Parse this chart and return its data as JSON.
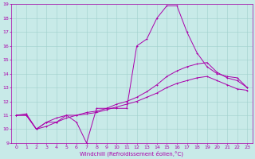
{
  "title": "",
  "xlabel": "Windchill (Refroidissement éolien,°C)",
  "xlim": [
    -0.5,
    23.5
  ],
  "ylim": [
    9,
    19
  ],
  "xticks": [
    0,
    1,
    2,
    3,
    4,
    5,
    6,
    7,
    8,
    9,
    10,
    11,
    12,
    13,
    14,
    15,
    16,
    17,
    18,
    19,
    20,
    21,
    22,
    23
  ],
  "yticks": [
    9,
    10,
    11,
    12,
    13,
    14,
    15,
    16,
    17,
    18,
    19
  ],
  "background_color": "#c8eae8",
  "line_color": "#aa00aa",
  "grid_color": "#a0d0cc",
  "line1_x": [
    0,
    1,
    2,
    3,
    4,
    5,
    6,
    7,
    8,
    9,
    10,
    11,
    12,
    13,
    14,
    15,
    16,
    17,
    18,
    19,
    20,
    21,
    22,
    23
  ],
  "line1_y": [
    11.0,
    11.1,
    10.0,
    10.5,
    10.5,
    11.0,
    10.5,
    9.0,
    11.5,
    11.5,
    11.5,
    11.5,
    16.0,
    16.5,
    18.0,
    18.9,
    18.9,
    17.0,
    15.5,
    14.5,
    14.0,
    13.8,
    13.7,
    13.0
  ],
  "line2_x": [
    0,
    1,
    2,
    3,
    4,
    5,
    6,
    7,
    8,
    9,
    10,
    11,
    12,
    13,
    14,
    15,
    16,
    17,
    18,
    19,
    20,
    21,
    22,
    23
  ],
  "line2_y": [
    11.0,
    11.0,
    10.0,
    10.5,
    10.8,
    11.0,
    11.0,
    11.2,
    11.3,
    11.5,
    11.8,
    12.0,
    12.3,
    12.7,
    13.2,
    13.8,
    14.2,
    14.5,
    14.7,
    14.8,
    14.1,
    13.7,
    13.5,
    13.0
  ],
  "line3_x": [
    0,
    1,
    2,
    3,
    4,
    5,
    6,
    7,
    8,
    9,
    10,
    11,
    12,
    13,
    14,
    15,
    16,
    17,
    18,
    19,
    20,
    21,
    22,
    23
  ],
  "line3_y": [
    11.0,
    11.0,
    10.0,
    10.2,
    10.5,
    10.8,
    11.0,
    11.1,
    11.2,
    11.4,
    11.6,
    11.8,
    12.0,
    12.3,
    12.6,
    13.0,
    13.3,
    13.5,
    13.7,
    13.8,
    13.5,
    13.2,
    12.9,
    12.8
  ],
  "tick_fontsize": 4.5,
  "xlabel_fontsize": 5.0,
  "marker_size": 2.0,
  "line_width": 0.7
}
